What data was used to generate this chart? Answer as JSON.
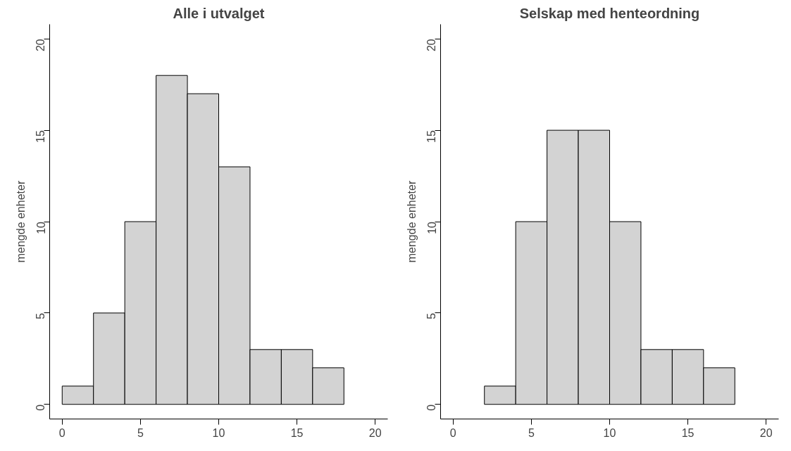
{
  "chart_data": [
    {
      "type": "histogram",
      "title": "Alle i utvalget",
      "ylabel": "mengde enheter",
      "bins": [
        0,
        2,
        4,
        6,
        8,
        10,
        12,
        14,
        16,
        18
      ],
      "values": [
        1,
        5,
        10,
        18,
        17,
        13,
        3,
        3,
        2
      ],
      "color": "#d3d3d3",
      "xlim": [
        -0.8,
        20.8
      ],
      "ylim": [
        -0.8,
        20.8
      ],
      "xticks": [
        0,
        5,
        10,
        15,
        20
      ],
      "yticks": [
        0,
        5,
        10,
        15,
        20
      ],
      "grid": false
    },
    {
      "type": "histogram",
      "title": "Selskap med henteordning",
      "ylabel": "mengde enheter",
      "bins": [
        2,
        4,
        6,
        8,
        10,
        12,
        14,
        16,
        18
      ],
      "values": [
        1,
        10,
        15,
        15,
        10,
        3,
        3,
        2
      ],
      "color": "#d3d3d3",
      "xlim": [
        -0.8,
        20.8
      ],
      "ylim": [
        -0.8,
        20.8
      ],
      "xticks": [
        0,
        5,
        10,
        15,
        20
      ],
      "yticks": [
        0,
        5,
        10,
        15,
        20
      ],
      "grid": false
    }
  ]
}
